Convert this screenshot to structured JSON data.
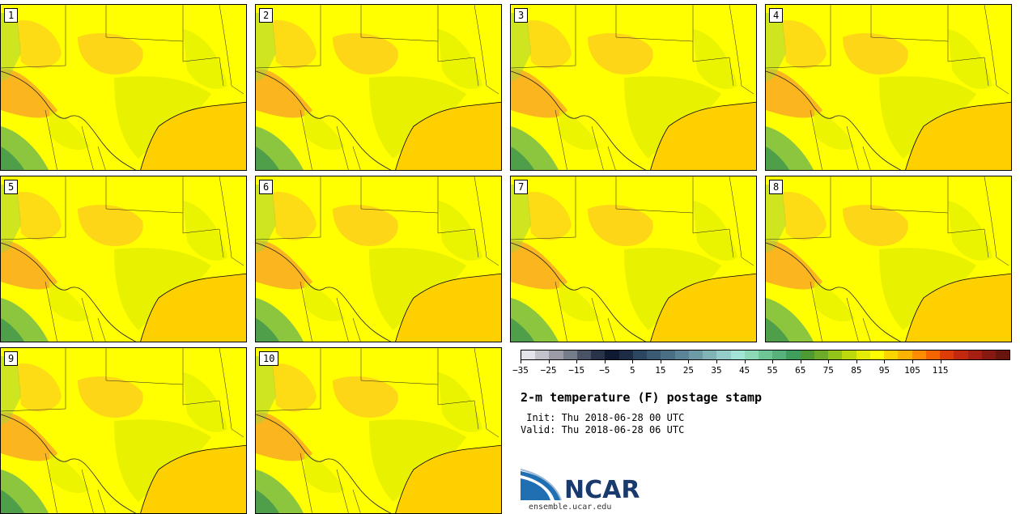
{
  "members": [
    {
      "label": "1"
    },
    {
      "label": "2"
    },
    {
      "label": "3"
    },
    {
      "label": "4"
    },
    {
      "label": "5"
    },
    {
      "label": "6"
    },
    {
      "label": "7"
    },
    {
      "label": "8"
    },
    {
      "label": "9"
    },
    {
      "label": "10"
    }
  ],
  "colorbar": {
    "colors": [
      "#e3e3ea",
      "#c2c2ca",
      "#9b9ba6",
      "#767d8a",
      "#4a5366",
      "#28334a",
      "#0e1a32",
      "#1e2b45",
      "#2c4560",
      "#3a5a73",
      "#4a6e84",
      "#5b8596",
      "#6c9ba6",
      "#7fb3b6",
      "#93ccc8",
      "#a2e3d8",
      "#8dd8b6",
      "#6ec596",
      "#56b27a",
      "#3f9e5c",
      "#4d9a32",
      "#6dac28",
      "#93c21a",
      "#bcd90e",
      "#e3ec06",
      "#fefe00",
      "#fed400",
      "#feb300",
      "#fe8c00",
      "#f46500",
      "#dd3c06",
      "#c3290e",
      "#a51f12",
      "#861a12",
      "#681510"
    ],
    "tick_labels": [
      "−35",
      "−25",
      "−15",
      "−5",
      "5",
      "15",
      "25",
      "35",
      "45",
      "55",
      "65",
      "75",
      "85",
      "95",
      "105",
      "115"
    ]
  },
  "title": "2-m temperature (F) postage stamp",
  "init_text": " Init: Thu 2018-06-28 00 UTC",
  "valid_text": "Valid: Thu 2018-06-28 06 UTC",
  "logo_text": "NCAR",
  "url_text": "ensemble.ucar.edu",
  "colors": {
    "gulf": "#ffd000",
    "land_base": "#ffff00",
    "warm": "#fdd21a",
    "hot": "#f9a825",
    "cool": "#e5f000",
    "green": "#8cc63f"
  }
}
